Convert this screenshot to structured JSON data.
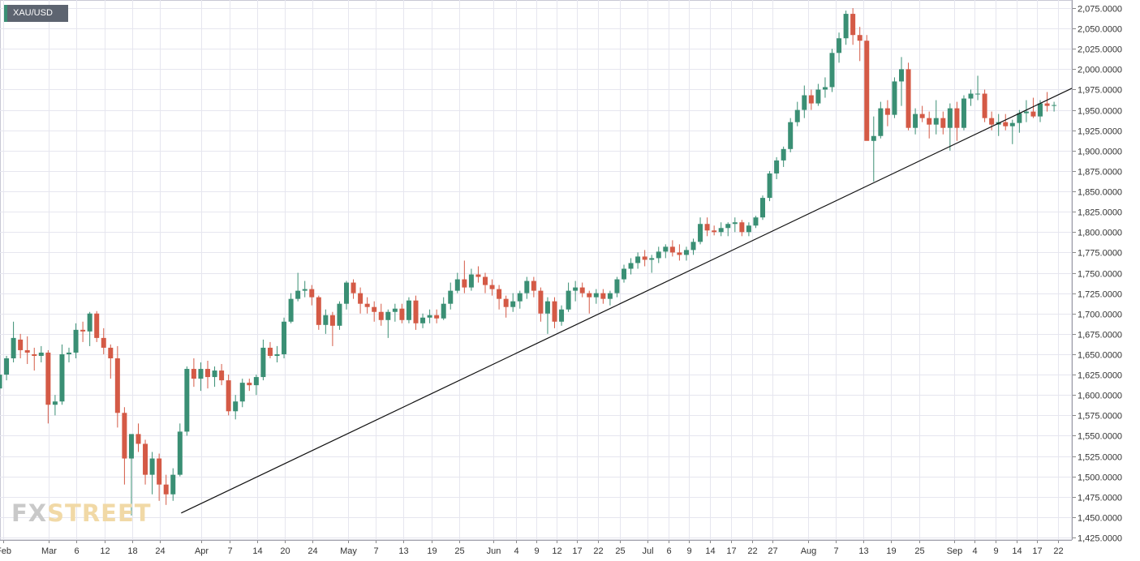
{
  "symbol": "XAU/USD",
  "logo": {
    "part1": "FX",
    "part2": "STREET"
  },
  "colors": {
    "up": "#3a8f74",
    "down": "#d45a46",
    "grid": "#e6e6ef",
    "trendline": "#111111",
    "axis_text": "#333333",
    "background": "#ffffff"
  },
  "chart_data": {
    "type": "candlestick",
    "x_tick_labels": [
      "Feb",
      "Mar",
      "6",
      "12",
      "18",
      "24",
      "Apr",
      "7",
      "14",
      "20",
      "24",
      "May",
      "7",
      "13",
      "19",
      "25",
      "Jun",
      "4",
      "9",
      "12",
      "17",
      "22",
      "25",
      "Jul",
      "6",
      "9",
      "14",
      "17",
      "22",
      "27",
      "Aug",
      "7",
      "13",
      "19",
      "25",
      "Sep",
      "4",
      "9",
      "14",
      "17",
      "22"
    ],
    "y_tick_labels": [
      "2,075.0000",
      "2,050.0000",
      "2,025.0000",
      "2,000.0000",
      "1,975.0000",
      "1,950.0000",
      "1,925.0000",
      "1,900.0000",
      "1,875.0000",
      "1,850.0000",
      "1,825.0000",
      "1,800.0000",
      "1,775.0000",
      "1,750.0000",
      "1,725.0000",
      "1,700.0000",
      "1,675.0000",
      "1,650.0000",
      "1,625.0000",
      "1,600.0000",
      "1,575.0000",
      "1,550.0000",
      "1,525.0000",
      "1,500.0000",
      "1,475.0000",
      "1,450.0000",
      "1,425.0000"
    ],
    "y_range": [
      1422,
      2085
    ],
    "candles": [
      [
        1608,
        1628,
        1600,
        1625
      ],
      [
        1625,
        1648,
        1618,
        1645
      ],
      [
        1645,
        1690,
        1640,
        1670
      ],
      [
        1668,
        1675,
        1645,
        1655
      ],
      [
        1655,
        1672,
        1638,
        1652
      ],
      [
        1650,
        1658,
        1630,
        1648
      ],
      [
        1648,
        1660,
        1640,
        1652
      ],
      [
        1652,
        1655,
        1565,
        1588
      ],
      [
        1588,
        1600,
        1575,
        1592
      ],
      [
        1592,
        1662,
        1588,
        1650
      ],
      [
        1650,
        1658,
        1640,
        1652
      ],
      [
        1652,
        1688,
        1645,
        1680
      ],
      [
        1680,
        1690,
        1665,
        1678
      ],
      [
        1678,
        1702,
        1660,
        1700
      ],
      [
        1700,
        1703,
        1665,
        1670
      ],
      [
        1670,
        1682,
        1650,
        1658
      ],
      [
        1658,
        1662,
        1620,
        1645
      ],
      [
        1645,
        1660,
        1560,
        1578
      ],
      [
        1578,
        1585,
        1490,
        1522
      ],
      [
        1522,
        1550,
        1452,
        1552
      ],
      [
        1552,
        1565,
        1530,
        1540
      ],
      [
        1540,
        1545,
        1490,
        1502
      ],
      [
        1502,
        1530,
        1478,
        1522
      ],
      [
        1522,
        1528,
        1470,
        1490
      ],
      [
        1490,
        1502,
        1465,
        1478
      ],
      [
        1478,
        1510,
        1470,
        1502
      ],
      [
        1502,
        1565,
        1500,
        1555
      ],
      [
        1555,
        1635,
        1550,
        1632
      ],
      [
        1632,
        1645,
        1610,
        1620
      ],
      [
        1620,
        1640,
        1605,
        1632
      ],
      [
        1632,
        1642,
        1608,
        1622
      ],
      [
        1622,
        1635,
        1610,
        1630
      ],
      [
        1630,
        1638,
        1612,
        1618
      ],
      [
        1618,
        1625,
        1575,
        1580
      ],
      [
        1580,
        1600,
        1570,
        1592
      ],
      [
        1592,
        1620,
        1585,
        1615
      ],
      [
        1615,
        1620,
        1605,
        1612
      ],
      [
        1612,
        1625,
        1600,
        1622
      ],
      [
        1622,
        1668,
        1618,
        1658
      ],
      [
        1658,
        1665,
        1645,
        1648
      ],
      [
        1648,
        1660,
        1640,
        1650
      ],
      [
        1650,
        1695,
        1645,
        1690
      ],
      [
        1690,
        1725,
        1688,
        1718
      ],
      [
        1718,
        1750,
        1715,
        1728
      ],
      [
        1728,
        1740,
        1720,
        1730
      ],
      [
        1730,
        1735,
        1710,
        1720
      ],
      [
        1720,
        1722,
        1680,
        1686
      ],
      [
        1686,
        1705,
        1675,
        1698
      ],
      [
        1698,
        1702,
        1660,
        1685
      ],
      [
        1685,
        1715,
        1680,
        1712
      ],
      [
        1712,
        1740,
        1705,
        1738
      ],
      [
        1738,
        1742,
        1718,
        1725
      ],
      [
        1725,
        1732,
        1700,
        1712
      ],
      [
        1712,
        1720,
        1700,
        1708
      ],
      [
        1708,
        1715,
        1690,
        1702
      ],
      [
        1702,
        1712,
        1685,
        1692
      ],
      [
        1692,
        1705,
        1670,
        1702
      ],
      [
        1702,
        1712,
        1690,
        1706
      ],
      [
        1706,
        1712,
        1688,
        1692
      ],
      [
        1692,
        1720,
        1688,
        1716
      ],
      [
        1716,
        1722,
        1680,
        1688
      ],
      [
        1688,
        1700,
        1682,
        1695
      ],
      [
        1695,
        1705,
        1688,
        1698
      ],
      [
        1698,
        1705,
        1688,
        1694
      ],
      [
        1694,
        1720,
        1692,
        1712
      ],
      [
        1712,
        1738,
        1705,
        1728
      ],
      [
        1728,
        1750,
        1725,
        1742
      ],
      [
        1742,
        1765,
        1725,
        1732
      ],
      [
        1732,
        1755,
        1728,
        1748
      ],
      [
        1748,
        1758,
        1738,
        1745
      ],
      [
        1745,
        1750,
        1725,
        1735
      ],
      [
        1735,
        1742,
        1722,
        1730
      ],
      [
        1730,
        1735,
        1705,
        1718
      ],
      [
        1718,
        1722,
        1695,
        1708
      ],
      [
        1708,
        1725,
        1702,
        1715
      ],
      [
        1715,
        1728,
        1706,
        1725
      ],
      [
        1725,
        1745,
        1718,
        1740
      ],
      [
        1740,
        1745,
        1720,
        1728
      ],
      [
        1728,
        1732,
        1690,
        1700
      ],
      [
        1700,
        1720,
        1675,
        1715
      ],
      [
        1715,
        1720,
        1682,
        1690
      ],
      [
        1690,
        1710,
        1685,
        1705
      ],
      [
        1705,
        1738,
        1702,
        1728
      ],
      [
        1728,
        1740,
        1715,
        1732
      ],
      [
        1732,
        1738,
        1720,
        1725
      ],
      [
        1725,
        1728,
        1700,
        1720
      ],
      [
        1720,
        1730,
        1712,
        1725
      ],
      [
        1725,
        1730,
        1712,
        1718
      ],
      [
        1718,
        1728,
        1710,
        1725
      ],
      [
        1725,
        1745,
        1720,
        1742
      ],
      [
        1742,
        1760,
        1738,
        1755
      ],
      [
        1755,
        1768,
        1748,
        1762
      ],
      [
        1762,
        1775,
        1755,
        1770
      ],
      [
        1770,
        1778,
        1758,
        1766
      ],
      [
        1766,
        1772,
        1750,
        1768
      ],
      [
        1768,
        1782,
        1762,
        1776
      ],
      [
        1776,
        1785,
        1768,
        1782
      ],
      [
        1782,
        1790,
        1770,
        1775
      ],
      [
        1775,
        1785,
        1765,
        1772
      ],
      [
        1772,
        1782,
        1765,
        1778
      ],
      [
        1778,
        1792,
        1772,
        1788
      ],
      [
        1788,
        1818,
        1785,
        1810
      ],
      [
        1810,
        1818,
        1795,
        1802
      ],
      [
        1802,
        1808,
        1796,
        1800
      ],
      [
        1800,
        1812,
        1795,
        1805
      ],
      [
        1805,
        1812,
        1795,
        1810
      ],
      [
        1810,
        1818,
        1800,
        1812
      ],
      [
        1812,
        1815,
        1795,
        1800
      ],
      [
        1800,
        1812,
        1795,
        1808
      ],
      [
        1808,
        1820,
        1805,
        1818
      ],
      [
        1818,
        1845,
        1815,
        1842
      ],
      [
        1842,
        1875,
        1838,
        1872
      ],
      [
        1872,
        1892,
        1865,
        1888
      ],
      [
        1888,
        1905,
        1880,
        1902
      ],
      [
        1902,
        1940,
        1898,
        1935
      ],
      [
        1935,
        1960,
        1930,
        1950
      ],
      [
        1950,
        1980,
        1940,
        1968
      ],
      [
        1968,
        1975,
        1950,
        1958
      ],
      [
        1958,
        1982,
        1955,
        1975
      ],
      [
        1975,
        1990,
        1965,
        1978
      ],
      [
        1978,
        2025,
        1972,
        2020
      ],
      [
        2020,
        2045,
        2008,
        2038
      ],
      [
        2038,
        2072,
        2030,
        2068
      ],
      [
        2068,
        2075,
        2030,
        2042
      ],
      [
        2042,
        2052,
        2010,
        2035
      ],
      [
        2035,
        2042,
        1918,
        1912
      ],
      [
        1912,
        1942,
        1862,
        1918
      ],
      [
        1918,
        1960,
        1915,
        1952
      ],
      [
        1952,
        1962,
        1930,
        1944
      ],
      [
        1944,
        1990,
        1940,
        1985
      ],
      [
        1985,
        2015,
        1955,
        2000
      ],
      [
        2000,
        2008,
        1925,
        1928
      ],
      [
        1928,
        1952,
        1920,
        1945
      ],
      [
        1945,
        1955,
        1935,
        1940
      ],
      [
        1940,
        1948,
        1915,
        1932
      ],
      [
        1932,
        1962,
        1920,
        1940
      ],
      [
        1940,
        1948,
        1920,
        1928
      ],
      [
        1928,
        1958,
        1900,
        1952
      ],
      [
        1952,
        1960,
        1912,
        1928
      ],
      [
        1928,
        1968,
        1925,
        1964
      ],
      [
        1964,
        1975,
        1955,
        1970
      ],
      [
        1970,
        1992,
        1962,
        1970
      ],
      [
        1970,
        1975,
        1935,
        1940
      ],
      [
        1940,
        1948,
        1925,
        1932
      ],
      [
        1932,
        1945,
        1918,
        1935
      ],
      [
        1935,
        1945,
        1925,
        1930
      ],
      [
        1930,
        1938,
        1908,
        1934
      ],
      [
        1934,
        1950,
        1922,
        1946
      ],
      [
        1946,
        1962,
        1935,
        1948
      ],
      [
        1948,
        1965,
        1940,
        1942
      ],
      [
        1942,
        1962,
        1935,
        1958
      ],
      [
        1958,
        1972,
        1948,
        1955
      ],
      [
        1955,
        1960,
        1948,
        1956
      ]
    ],
    "trendline": {
      "start_index": 26,
      "start_value": 1455,
      "end_index": 153,
      "end_value": 1970
    }
  }
}
